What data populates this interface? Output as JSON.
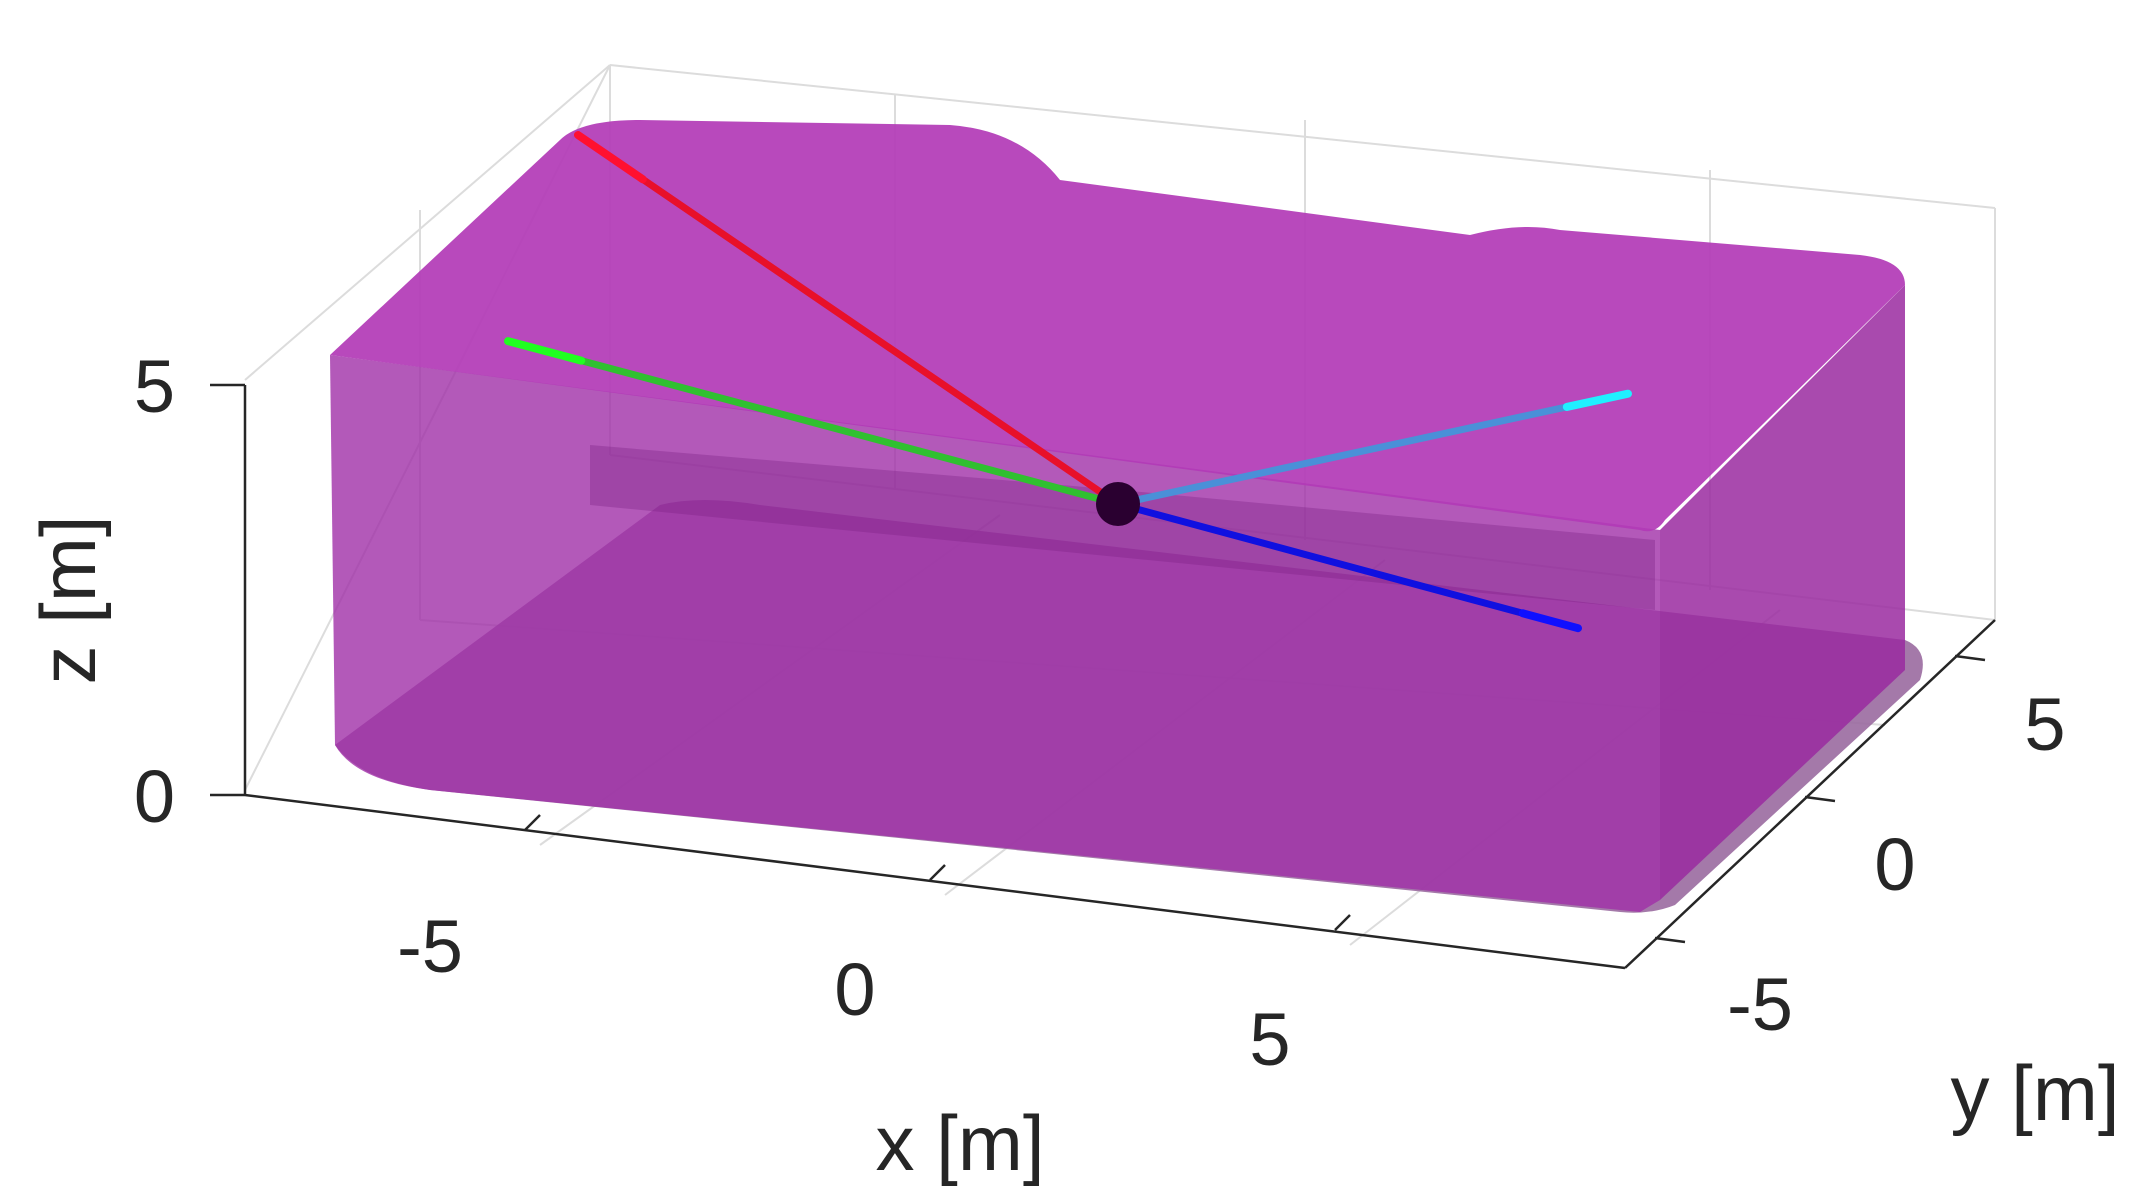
{
  "chart_data": {
    "type": "surface3d",
    "title": "",
    "xlabel": "x [m]",
    "ylabel": "y [m]",
    "zlabel": "z [m]",
    "x_ticks": [
      "-5",
      "0",
      "5"
    ],
    "y_ticks": [
      "-5",
      "0",
      "5"
    ],
    "z_ticks": [
      "0",
      "5"
    ],
    "xlim": [
      -10,
      10
    ],
    "ylim": [
      -8,
      8
    ],
    "zlim": [
      0,
      5
    ],
    "grid": true,
    "volume": {
      "name": "",
      "color": "#b030b0",
      "opacity": 0.6,
      "description_values": {
        "x_range": [
          -9,
          9
        ],
        "y_range": [
          -7,
          7
        ],
        "z_range": [
          0,
          5
        ]
      }
    },
    "center_point": {
      "x": 0,
      "y": 0,
      "z": 3.8,
      "color": "#2a0030"
    },
    "series": [
      {
        "color": "#e8102a",
        "x": [
          0,
          -6
        ],
        "y": [
          0,
          6
        ],
        "z": [
          3.8,
          6.8
        ]
      },
      {
        "color": "#30c030",
        "x": [
          0,
          -9
        ],
        "y": [
          0,
          -1
        ],
        "z": [
          3.8,
          5
        ]
      },
      {
        "color": "#1010e0",
        "x": [
          0,
          6
        ],
        "y": [
          0,
          -2
        ],
        "z": [
          3.8,
          3.2
        ]
      },
      {
        "color": "#4a90d8",
        "x": [
          0,
          9
        ],
        "y": [
          0,
          6
        ],
        "z": [
          3.8,
          5.2
        ]
      }
    ]
  }
}
